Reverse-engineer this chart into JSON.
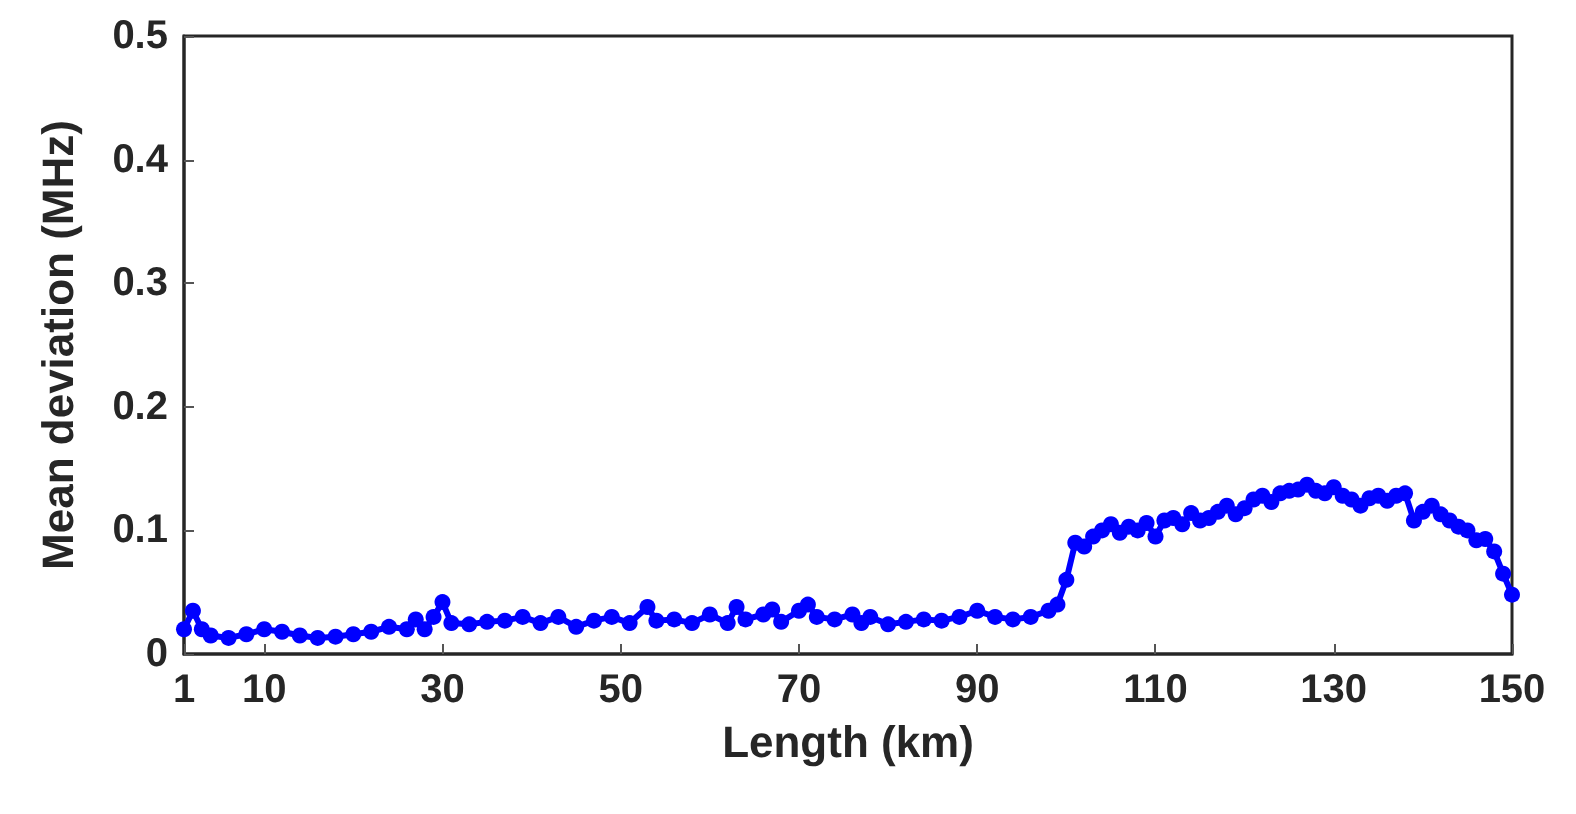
{
  "chart_data": {
    "type": "line",
    "xlabel": "Length (km)",
    "ylabel": "Mean deviation (MHz)",
    "xlim": [
      1,
      150
    ],
    "xticks": [
      1,
      10,
      30,
      50,
      70,
      90,
      110,
      130,
      150
    ],
    "ylim": [
      0,
      0.5
    ],
    "yticks": [
      0,
      0.1,
      0.2,
      0.3,
      0.4,
      0.5
    ],
    "grid": false,
    "marker": "circle",
    "line_style": "solid",
    "series": [
      {
        "color": "#0000ff",
        "x": [
          1,
          2,
          3,
          4,
          6,
          8,
          10,
          12,
          14,
          16,
          18,
          20,
          22,
          24,
          26,
          27,
          28,
          29,
          30,
          31,
          33,
          35,
          37,
          39,
          41,
          43,
          45,
          47,
          49,
          51,
          53,
          54,
          56,
          58,
          60,
          62,
          63,
          64,
          66,
          67,
          68,
          70,
          71,
          72,
          74,
          76,
          77,
          78,
          80,
          82,
          84,
          86,
          88,
          90,
          92,
          94,
          96,
          98,
          99,
          100,
          101,
          102,
          103,
          104,
          105,
          106,
          107,
          108,
          109,
          110,
          111,
          112,
          113,
          114,
          115,
          116,
          117,
          118,
          119,
          120,
          121,
          122,
          123,
          124,
          125,
          126,
          127,
          128,
          129,
          130,
          131,
          132,
          133,
          134,
          135,
          136,
          137,
          138,
          139,
          140,
          141,
          142,
          143,
          144,
          145,
          146,
          147,
          148,
          149,
          150
        ],
        "values": [
          0.02,
          0.035,
          0.02,
          0.015,
          0.013,
          0.016,
          0.02,
          0.018,
          0.015,
          0.013,
          0.014,
          0.016,
          0.018,
          0.022,
          0.02,
          0.028,
          0.02,
          0.03,
          0.042,
          0.025,
          0.024,
          0.026,
          0.027,
          0.03,
          0.025,
          0.03,
          0.022,
          0.027,
          0.03,
          0.025,
          0.038,
          0.027,
          0.028,
          0.025,
          0.032,
          0.025,
          0.038,
          0.028,
          0.032,
          0.036,
          0.026,
          0.035,
          0.04,
          0.03,
          0.028,
          0.032,
          0.025,
          0.03,
          0.024,
          0.026,
          0.028,
          0.027,
          0.03,
          0.035,
          0.03,
          0.028,
          0.03,
          0.035,
          0.04,
          0.06,
          0.09,
          0.087,
          0.095,
          0.1,
          0.105,
          0.098,
          0.103,
          0.1,
          0.106,
          0.095,
          0.108,
          0.11,
          0.105,
          0.114,
          0.108,
          0.11,
          0.115,
          0.12,
          0.113,
          0.118,
          0.125,
          0.128,
          0.123,
          0.13,
          0.132,
          0.133,
          0.137,
          0.132,
          0.13,
          0.135,
          0.128,
          0.125,
          0.12,
          0.126,
          0.128,
          0.124,
          0.128,
          0.13,
          0.108,
          0.115,
          0.12,
          0.113,
          0.108,
          0.103,
          0.1,
          0.092,
          0.093,
          0.083,
          0.065,
          0.048
        ]
      }
    ]
  }
}
